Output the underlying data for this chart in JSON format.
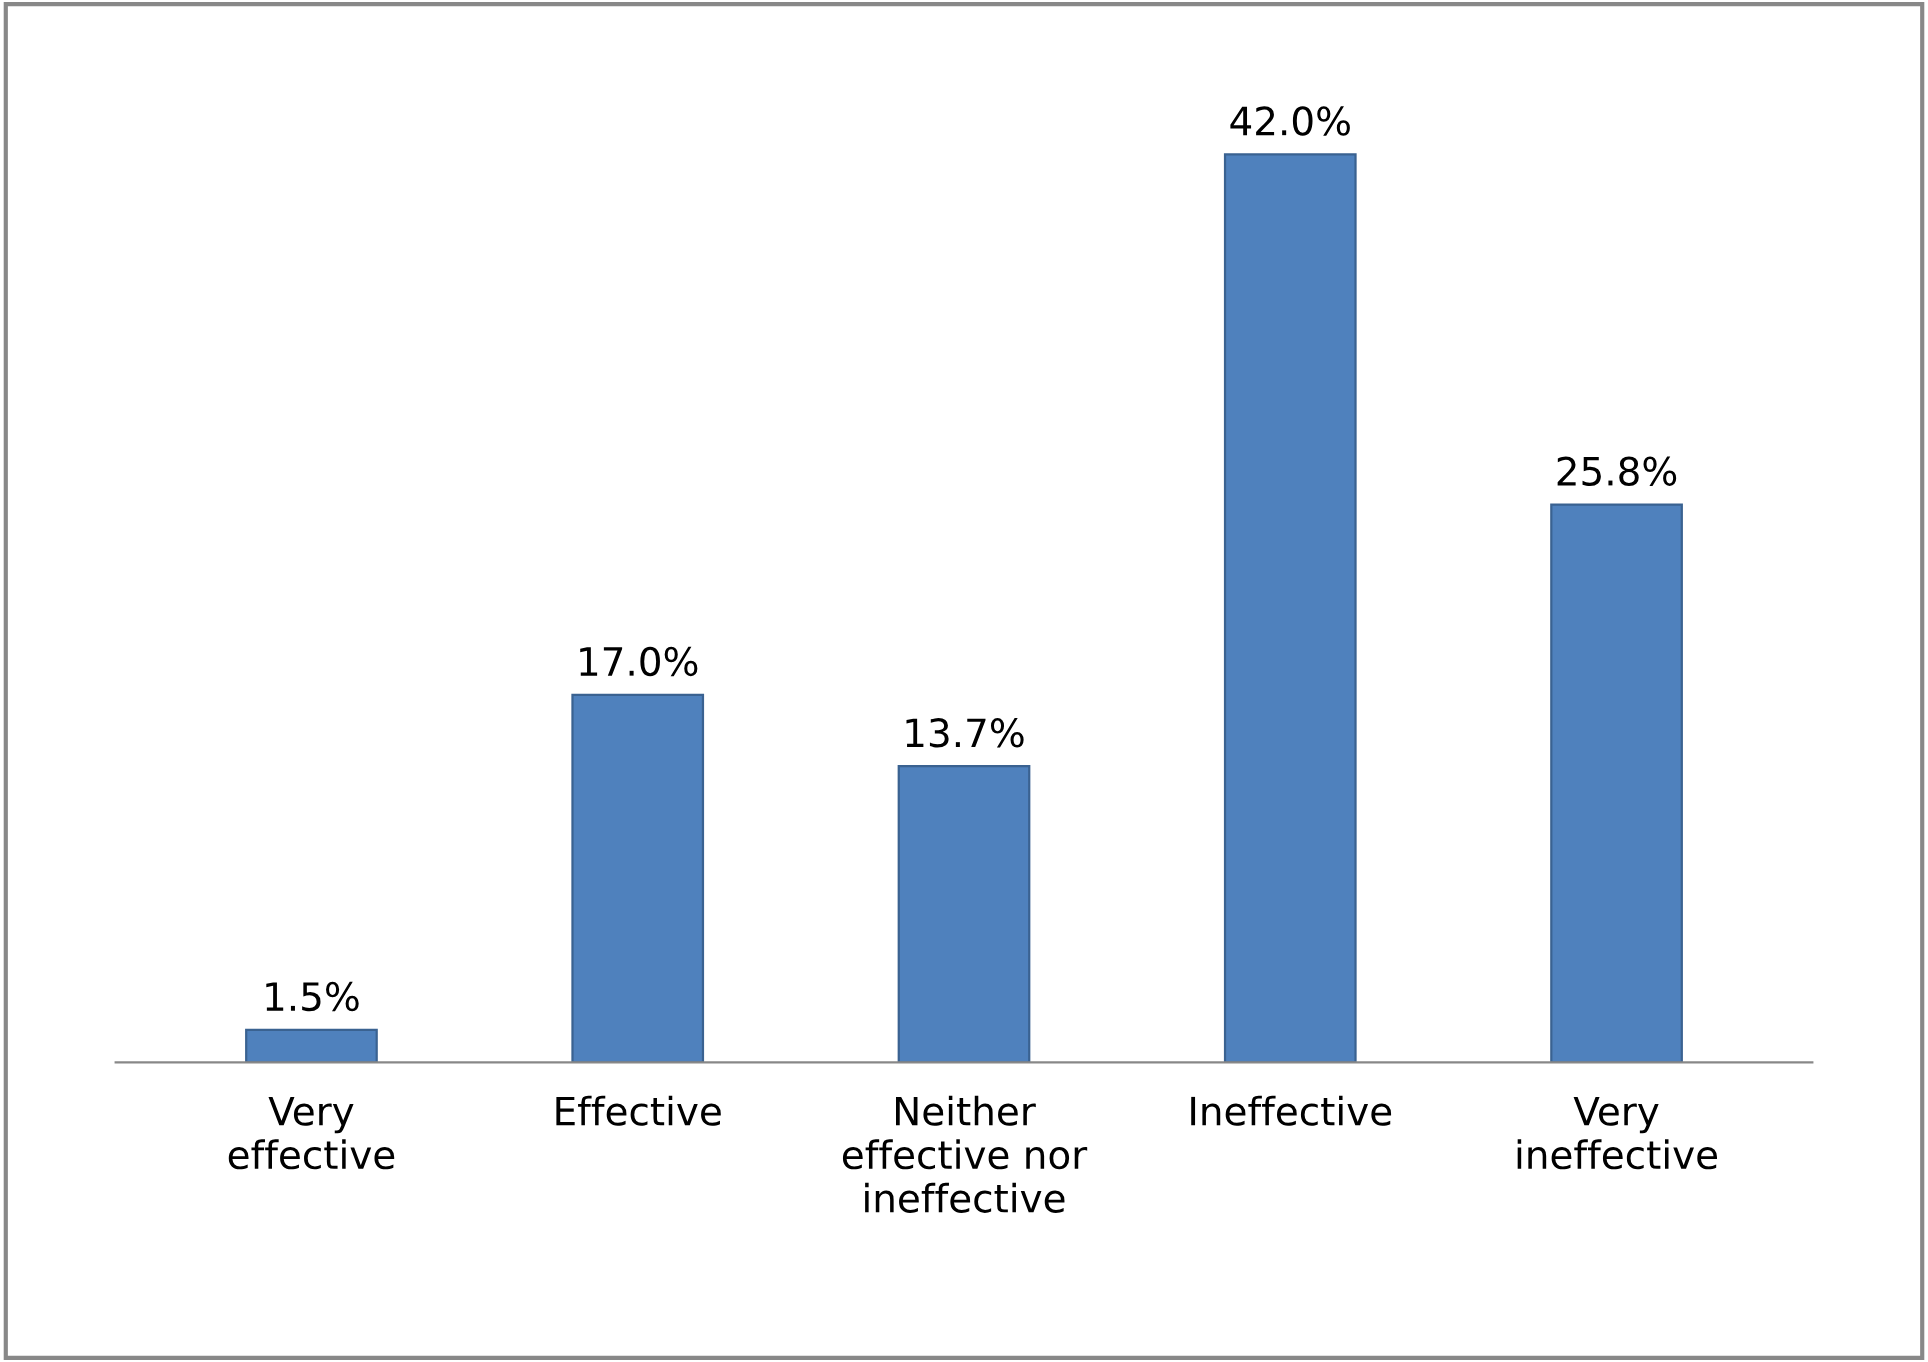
{
  "chart_data": {
    "type": "bar",
    "categories": [
      "Very\neffective",
      "Effective",
      "Neither\neffective nor\nineffective",
      "Ineffective",
      "Very\nineffective"
    ],
    "values": [
      1.5,
      17.0,
      13.7,
      42.0,
      25.8
    ],
    "value_labels": [
      "1.5%",
      "17.0%",
      "13.7%",
      "42.0%",
      "25.8%"
    ],
    "color": "#4f81bd",
    "grid": false,
    "legend": false
  }
}
